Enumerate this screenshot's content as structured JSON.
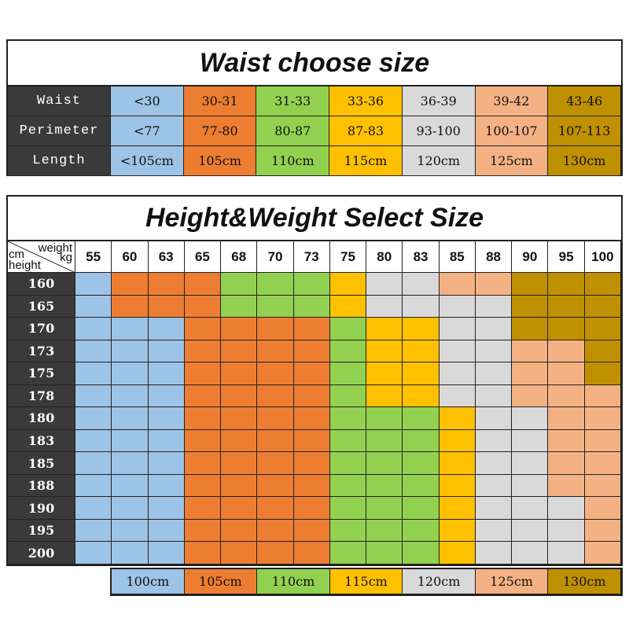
{
  "colors": [
    "#9dc3e6",
    "#ed7d31",
    "#92d050",
    "#ffc000",
    "#d9d9d9",
    "#f4b183",
    "#bf9000"
  ],
  "label_bg": "#3a3a3a",
  "waist_table": {
    "title": "Waist choose size",
    "rows": [
      {
        "label": "Waist",
        "values": [
          "<30",
          "30-31",
          "31-33",
          "33-36",
          "36-39",
          "39-42",
          "43-46"
        ]
      },
      {
        "label": "Perimeter",
        "values": [
          "<77",
          "77-80",
          "80-87",
          "87-83",
          "93-100",
          "100-107",
          "107-113"
        ]
      },
      {
        "label": "Length",
        "values": [
          "<105cm",
          "105cm",
          "110cm",
          "115cm",
          "120cm",
          "125cm",
          "130cm"
        ]
      }
    ]
  },
  "hw_table": {
    "title": "Height&Weight Select Size",
    "corner": {
      "weight": "weight",
      "kg": "kg",
      "cm": "cm",
      "height": "height"
    },
    "weights": [
      "55",
      "60",
      "63",
      "65",
      "68",
      "70",
      "73",
      "75",
      "80",
      "83",
      "85",
      "88",
      "90",
      "95",
      "100"
    ],
    "heights": [
      "160",
      "165",
      "170",
      "173",
      "175",
      "178",
      "180",
      "183",
      "185",
      "188",
      "190",
      "195",
      "200"
    ],
    "size_grid": [
      [
        0,
        1,
        1,
        1,
        2,
        2,
        2,
        3,
        4,
        4,
        5,
        5,
        6,
        6,
        6
      ],
      [
        0,
        1,
        1,
        1,
        2,
        2,
        2,
        3,
        4,
        4,
        4,
        4,
        6,
        6,
        6
      ],
      [
        0,
        0,
        0,
        1,
        1,
        1,
        1,
        2,
        3,
        3,
        4,
        4,
        6,
        6,
        6
      ],
      [
        0,
        0,
        0,
        1,
        1,
        1,
        1,
        2,
        3,
        3,
        4,
        4,
        5,
        5,
        6
      ],
      [
        0,
        0,
        0,
        1,
        1,
        1,
        1,
        2,
        3,
        3,
        4,
        4,
        5,
        5,
        6
      ],
      [
        0,
        0,
        0,
        1,
        1,
        1,
        1,
        2,
        3,
        3,
        4,
        4,
        5,
        5,
        5
      ],
      [
        0,
        0,
        0,
        1,
        1,
        1,
        1,
        2,
        2,
        2,
        3,
        4,
        4,
        5,
        5
      ],
      [
        0,
        0,
        0,
        1,
        1,
        1,
        1,
        2,
        2,
        2,
        3,
        4,
        4,
        5,
        5
      ],
      [
        0,
        0,
        0,
        1,
        1,
        1,
        1,
        2,
        2,
        2,
        3,
        4,
        4,
        5,
        5
      ],
      [
        0,
        0,
        0,
        1,
        1,
        1,
        1,
        2,
        2,
        2,
        3,
        4,
        4,
        5,
        5
      ],
      [
        0,
        0,
        0,
        1,
        1,
        1,
        1,
        2,
        2,
        2,
        3,
        4,
        4,
        4,
        5
      ],
      [
        0,
        0,
        0,
        1,
        1,
        1,
        1,
        2,
        2,
        2,
        3,
        4,
        4,
        4,
        5
      ],
      [
        0,
        0,
        0,
        1,
        1,
        1,
        1,
        2,
        2,
        2,
        3,
        4,
        4,
        4,
        5
      ]
    ]
  },
  "legend": [
    "100cm",
    "105cm",
    "110cm",
    "115cm",
    "120cm",
    "125cm",
    "130cm"
  ]
}
